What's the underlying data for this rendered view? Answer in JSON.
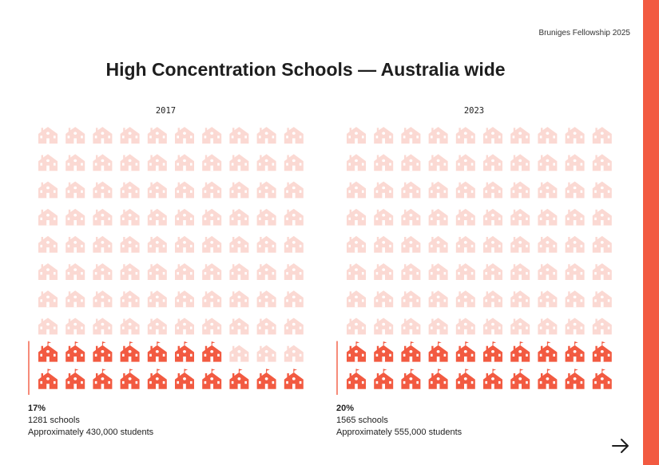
{
  "header": {
    "tag": "Bruniges Fellowship 2025"
  },
  "title": "High Concentration Schools — Australia wide",
  "colors": {
    "accent": "#f25a41",
    "filled": "#f25a41",
    "empty": "#fbd9d3",
    "axis": "#f25a41"
  },
  "chart_data": [
    {
      "type": "waffle",
      "title": "2017",
      "grid": {
        "rows": 10,
        "cols": 10
      },
      "total_icons": 100,
      "filled_icons": 17,
      "fill_order": "bottom-up, left-to-right",
      "icon": "school-building-icon",
      "percent_label": "17%",
      "schools_label": "1281 schools",
      "students_label": "Approximately 430,000 students"
    },
    {
      "type": "waffle",
      "title": "2023",
      "grid": {
        "rows": 10,
        "cols": 10
      },
      "total_icons": 100,
      "filled_icons": 20,
      "fill_order": "bottom-up, left-to-right",
      "icon": "school-building-icon",
      "percent_label": "20%",
      "schools_label": "1565 schools",
      "students_label": "Approximately 555,000 students"
    }
  ],
  "nav": {
    "next_icon": "arrow-right-icon"
  }
}
